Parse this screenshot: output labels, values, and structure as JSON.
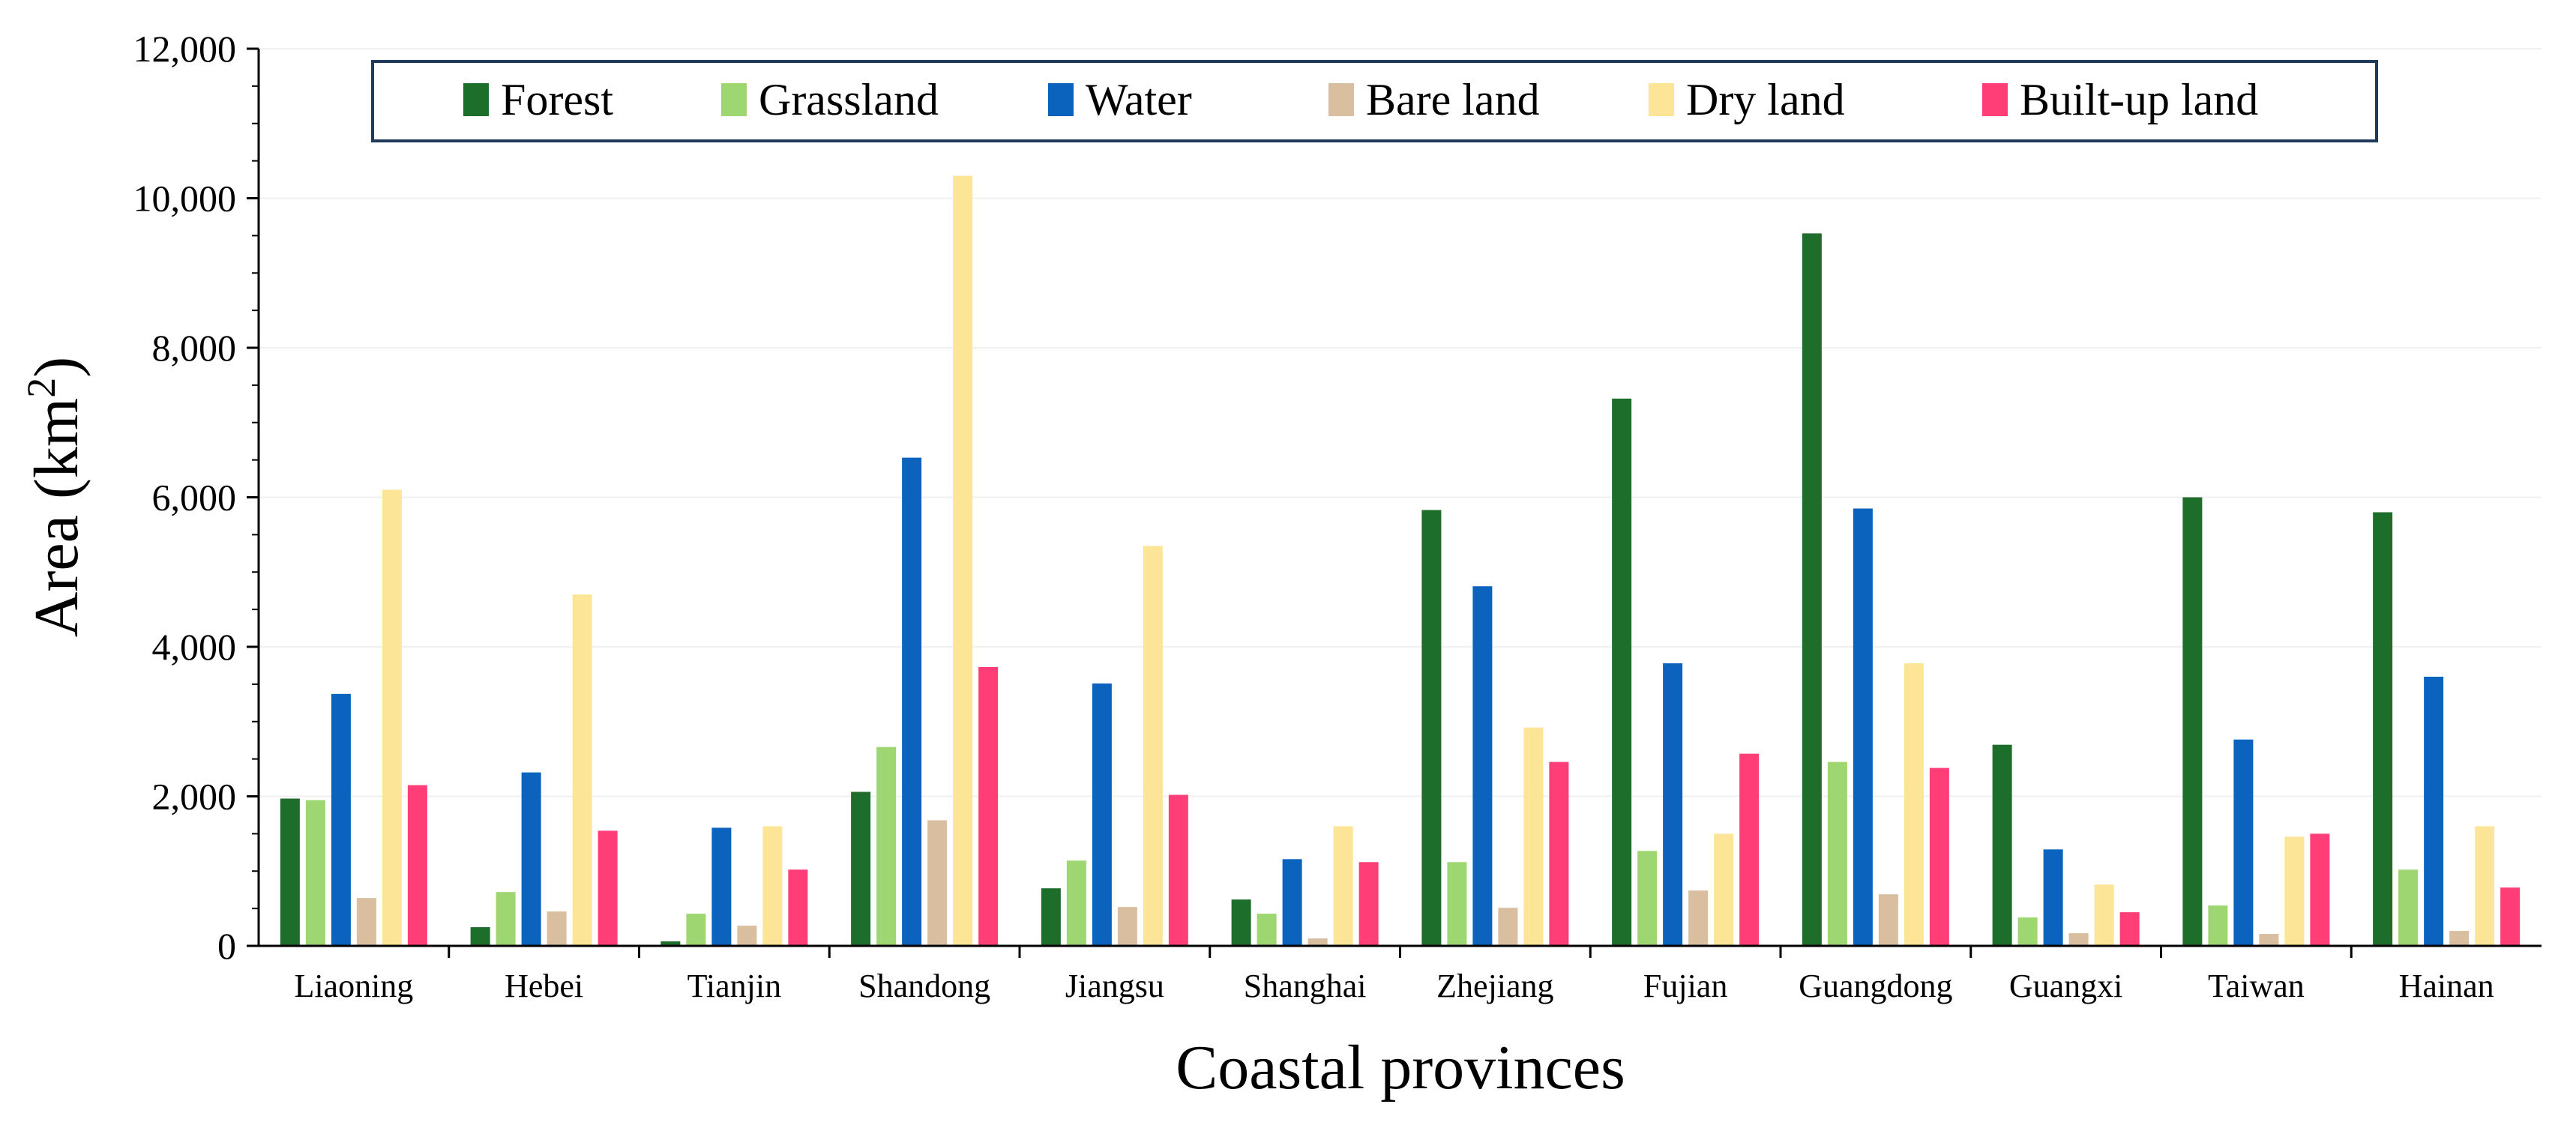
{
  "chart_data": {
    "type": "bar",
    "title": "",
    "xlabel": "Coastal provinces",
    "ylabel": "Area (km",
    "ylabel_sup": "2",
    "ylabel_close": ")",
    "ylim": [
      0,
      12000
    ],
    "yticks": [
      0,
      2000,
      4000,
      6000,
      8000,
      10000,
      12000
    ],
    "ytick_labels": [
      "0",
      "2,000",
      "4,000",
      "6,000",
      "8,000",
      "10,000",
      "12,000"
    ],
    "legend_position": "top",
    "categories": [
      "Liaoning",
      "Hebei",
      "Tianjin",
      "Shandong",
      "Jiangsu",
      "Shanghai",
      "Zhejiang",
      "Fujian",
      "Guangdong",
      "Guangxi",
      "Taiwan",
      "Hainan"
    ],
    "series": [
      {
        "name": "Forest",
        "color": "#1e6e2b",
        "values": [
          1970,
          250,
          60,
          2060,
          770,
          620,
          5830,
          7320,
          9530,
          2690,
          6000,
          5800
        ]
      },
      {
        "name": "Grassland",
        "color": "#9ed672",
        "values": [
          1950,
          720,
          430,
          2660,
          1140,
          430,
          1120,
          1270,
          2460,
          380,
          540,
          1020
        ]
      },
      {
        "name": "Water",
        "color": "#0b63bd",
        "values": [
          3370,
          2320,
          1580,
          6530,
          3510,
          1160,
          4810,
          3780,
          5850,
          1290,
          2760,
          3600
        ]
      },
      {
        "name": "Bare land",
        "color": "#d9bf9f",
        "values": [
          640,
          460,
          270,
          1680,
          520,
          100,
          510,
          740,
          690,
          170,
          160,
          200
        ]
      },
      {
        "name": "Dry land",
        "color": "#fde598",
        "values": [
          6100,
          4700,
          1600,
          10300,
          5350,
          1600,
          2920,
          1500,
          3780,
          820,
          1460,
          1600
        ]
      },
      {
        "name": "Built-up land",
        "color": "#ff3e77",
        "values": [
          2150,
          1540,
          1020,
          3730,
          2020,
          1120,
          2460,
          2570,
          2380,
          450,
          1500,
          780
        ]
      }
    ]
  }
}
